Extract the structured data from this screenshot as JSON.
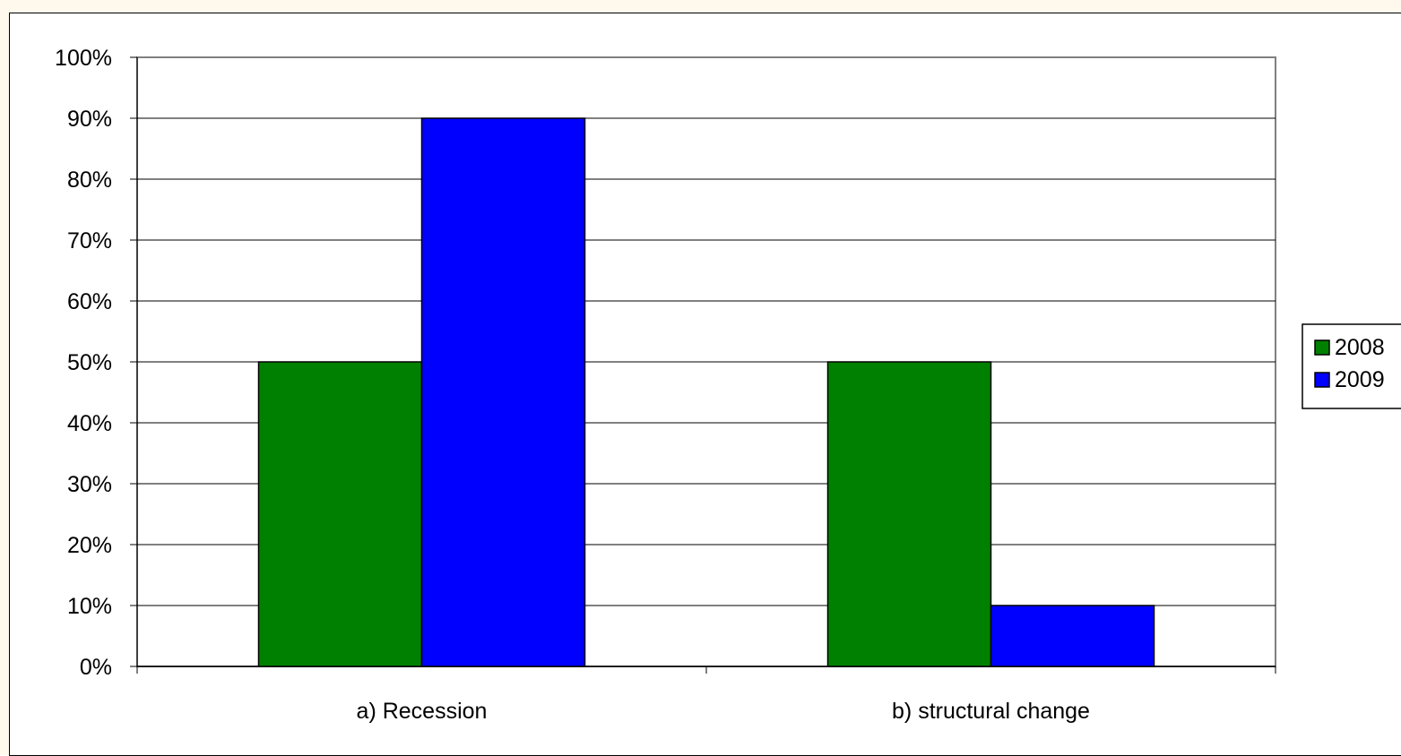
{
  "chart_data": {
    "type": "bar",
    "title": "",
    "xlabel": "",
    "ylabel": "",
    "categories": [
      "a) Recession",
      "b) structural change"
    ],
    "series": [
      {
        "name": "2008",
        "values": [
          50,
          50
        ],
        "color": "#008000"
      },
      {
        "name": "2009",
        "values": [
          90,
          10
        ],
        "color": "#0000ff"
      }
    ],
    "ylim": [
      0,
      100
    ],
    "yticks": [
      0,
      10,
      20,
      30,
      40,
      50,
      60,
      70,
      80,
      90,
      100
    ],
    "ytick_labels": [
      "0%",
      "10%",
      "20%",
      "30%",
      "40%",
      "50%",
      "60%",
      "70%",
      "80%",
      "90%",
      "100%"
    ],
    "grid": true,
    "legend_position": "right",
    "background": "#ffffff",
    "page_background": "#fff8ec"
  }
}
